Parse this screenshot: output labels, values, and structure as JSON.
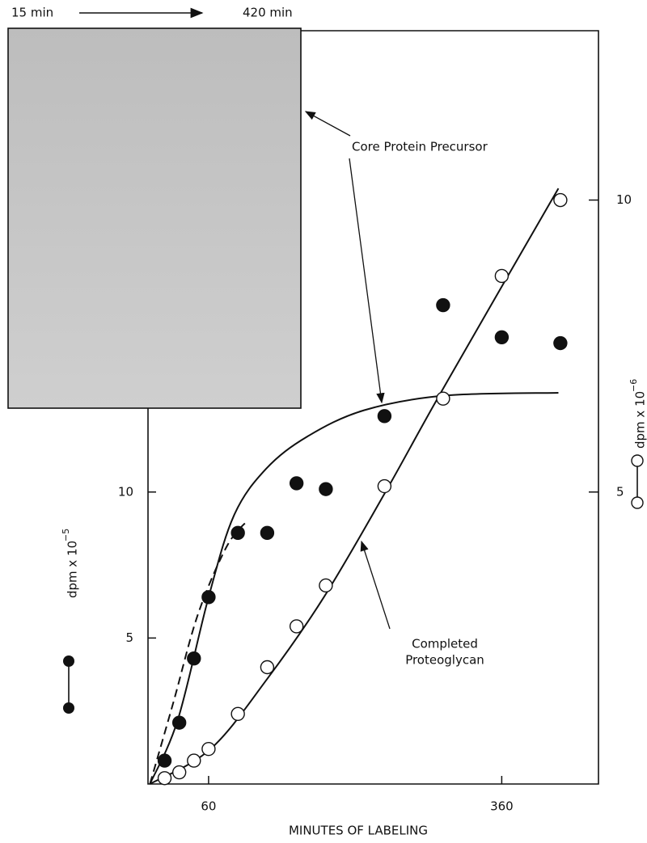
{
  "chart_data": {
    "type": "scatter",
    "inset_header": {
      "start": "15 min",
      "end": "420 min"
    },
    "x_label": "MINUTES OF LABELING",
    "y_label": {
      "text": "dpm x 10",
      "exponent": "−5"
    },
    "y2_label": {
      "text": "dpm x 10",
      "exponent": "−6"
    },
    "xlim": [
      -2,
      459
    ],
    "xticks": [
      60,
      360
    ],
    "ylim": [
      0,
      25.8
    ],
    "yticks": [
      5,
      10
    ],
    "y2lim": [
      0,
      12.9
    ],
    "y2ticks": [
      5,
      10
    ],
    "color": "#111111",
    "series": [
      {
        "marker": "filled",
        "axis": "y",
        "x": [
          15,
          30,
          45,
          60,
          90,
          120,
          150,
          180,
          240,
          300,
          360,
          420
        ],
        "values": [
          0.8,
          2.1,
          4.3,
          6.4,
          8.6,
          8.6,
          10.3,
          10.1,
          12.6,
          16.4,
          15.3,
          15.1
        ]
      },
      {
        "marker": "open",
        "axis": "y2",
        "x": [
          15,
          30,
          45,
          60,
          90,
          120,
          150,
          180,
          240,
          300,
          360,
          420
        ],
        "values": [
          0.1,
          0.2,
          0.4,
          0.6,
          1.2,
          2.0,
          2.7,
          3.4,
          5.1,
          6.6,
          8.7,
          10.0
        ]
      }
    ],
    "curves": [
      {
        "axis": "y",
        "style": "solid",
        "x": [
          0,
          28.5,
          60,
          86,
          119,
          161,
          219,
          301,
          418
        ],
        "values": [
          0,
          2.2,
          6.4,
          9.2,
          10.8,
          11.9,
          12.8,
          13.3,
          13.4
        ]
      },
      {
        "axis": "y",
        "style": "dashed",
        "x": [
          0,
          24,
          49,
          78,
          99
        ],
        "values": [
          0,
          2.8,
          5.8,
          8.1,
          9.0
        ]
      },
      {
        "axis": "y2",
        "style": "solid",
        "x": [
          0,
          62,
          120,
          178,
          241,
          301,
          418
        ],
        "values": [
          0,
          0.6,
          1.8,
          3.2,
          5.0,
          6.8,
          10.2
        ]
      }
    ],
    "annotations": [
      {
        "lines": [
          "Core Protein Precursor"
        ]
      },
      {
        "lines": [
          "Completed",
          "Proteoglycan"
        ]
      }
    ]
  }
}
